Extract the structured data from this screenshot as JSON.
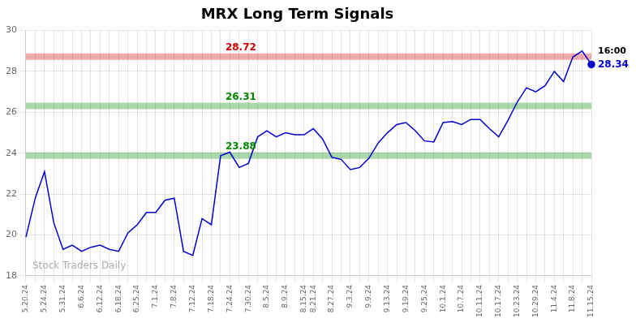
{
  "chart_data": {
    "type": "line",
    "title": "MRX Long Term Signals",
    "categories": [
      "5.20.24",
      null,
      "5.24.24",
      null,
      "5.31.24",
      null,
      "6.6.24",
      null,
      "6.12.24",
      null,
      "6.18.24",
      null,
      "6.25.24",
      null,
      "7.1.24",
      null,
      "7.8.24",
      null,
      "7.12.24",
      null,
      "7.18.24",
      null,
      "7.24.24",
      null,
      "7.30.24",
      null,
      "8.5.24",
      null,
      "8.9.24",
      null,
      "8.15.24",
      "8.21.24",
      null,
      "8.27.24",
      null,
      "9.3.24",
      null,
      "9.9.24",
      null,
      "9.13.24",
      null,
      "9.19.24",
      null,
      "9.25.24",
      null,
      "10.1.24",
      null,
      "10.7.24",
      null,
      "10.11.24",
      null,
      "10.17.24",
      null,
      "10.23.24",
      null,
      "10.29.24",
      null,
      "11.4.24",
      null,
      "11.8.24",
      null,
      "11.15.24"
    ],
    "values": [
      19.9,
      21.8,
      23.1,
      20.6,
      19.3,
      19.5,
      19.2,
      19.4,
      19.5,
      19.3,
      19.2,
      20.1,
      20.5,
      21.1,
      21.1,
      21.7,
      21.8,
      19.2,
      19.0,
      20.8,
      20.5,
      23.88,
      24.05,
      23.3,
      23.5,
      24.8,
      25.1,
      24.8,
      25.0,
      24.9,
      24.9,
      25.2,
      24.7,
      23.8,
      23.7,
      23.2,
      23.3,
      23.75,
      24.5,
      25.0,
      25.4,
      25.5,
      25.1,
      24.6,
      24.55,
      25.5,
      25.55,
      25.4,
      25.65,
      25.65,
      25.2,
      24.8,
      25.6,
      26.5,
      27.2,
      27.0,
      27.3,
      28.0,
      27.5,
      28.7,
      29.0,
      28.34
    ],
    "color": "#0000cc",
    "ylim": [
      18,
      30
    ],
    "yticks": [
      18,
      20,
      22,
      24,
      26,
      28,
      30
    ],
    "grid": true,
    "hlines": [
      {
        "value": 28.72,
        "label": "28.72",
        "color": "#cc0000"
      },
      {
        "value": 26.31,
        "label": "26.31",
        "color": "#008800"
      },
      {
        "value": 23.88,
        "label": "23.88",
        "color": "#008800"
      }
    ],
    "last_point": {
      "time": "16:00",
      "value": 28.34
    },
    "watermark": "Stock Traders Daily"
  }
}
